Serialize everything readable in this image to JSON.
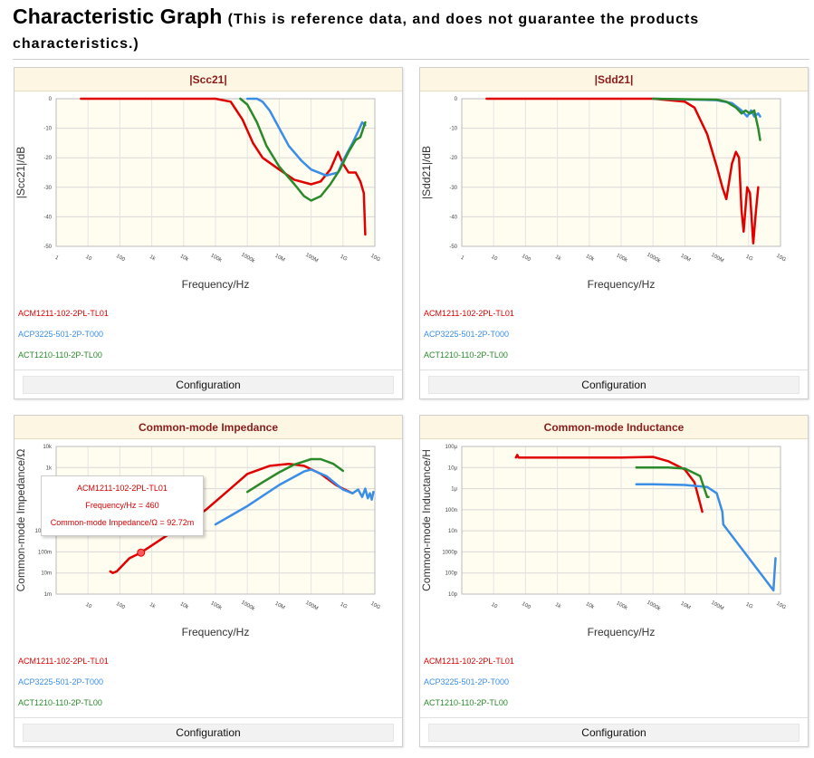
{
  "page": {
    "title": "Characteristic Graph",
    "subtitle": "(This is reference data, and does not guarantee the products characteristics.)"
  },
  "colors": {
    "red": "#e00000",
    "blue": "#3a8ee6",
    "green": "#2a8a2a",
    "head_bg": "#fdf6e3",
    "head_text": "#8b1c1c"
  },
  "legend": [
    "ACM1211-102-2PL-TL01",
    "ACP3225-501-2P-T000",
    "ACT1210-110-2P-TL00"
  ],
  "config_label": "Configuration",
  "tooltip": {
    "line1": "ACM1211-102-2PL-TL01",
    "line2": "Frequency/Hz = 460",
    "line3": "Common-mode Impedance/Ω = 92.72m"
  },
  "chart_data": [
    {
      "type": "line",
      "title": "|Scc21|",
      "xlabel": "Frequency/Hz",
      "ylabel": "|Scc21|/dB",
      "x_scale": "log",
      "xlim": [
        1,
        10000000000
      ],
      "ylim": [
        -50,
        0
      ],
      "x_tick_labels": [
        "1",
        "10",
        "100",
        "1k",
        "10k",
        "100k",
        "1000k",
        "10M",
        "100M",
        "1G",
        "10G"
      ],
      "y_tick_labels": [
        "0",
        "-10",
        "-20",
        "-30",
        "-40",
        "-50"
      ],
      "y_ticks": [
        0,
        -10,
        -20,
        -30,
        -40,
        -50
      ],
      "grid": true,
      "series": [
        {
          "name": "ACM1211-102-2PL-TL01",
          "color": "#e00000",
          "points": [
            [
              6,
              0
            ],
            [
              1000,
              0
            ],
            [
              100000,
              0
            ],
            [
              300000,
              -1
            ],
            [
              700000,
              -7
            ],
            [
              1500000,
              -15
            ],
            [
              3000000,
              -20
            ],
            [
              10000000,
              -24
            ],
            [
              30000000,
              -27.5
            ],
            [
              100000000,
              -29
            ],
            [
              200000000,
              -28
            ],
            [
              400000000,
              -24
            ],
            [
              700000000,
              -18
            ],
            [
              1000000000,
              -22
            ],
            [
              1500000000,
              -25
            ],
            [
              2500000000,
              -25
            ],
            [
              3500000000,
              -28
            ],
            [
              4500000000,
              -32
            ],
            [
              5000000000,
              -46
            ]
          ]
        },
        {
          "name": "ACP3225-501-2P-T000",
          "color": "#3a8ee6",
          "points": [
            [
              1000000,
              0
            ],
            [
              2000000,
              0
            ],
            [
              3000000,
              -1
            ],
            [
              5000000,
              -4
            ],
            [
              10000000,
              -10
            ],
            [
              20000000,
              -16
            ],
            [
              50000000,
              -21
            ],
            [
              100000000,
              -24
            ],
            [
              300000000,
              -26
            ],
            [
              700000000,
              -25
            ],
            [
              1000000000,
              -21
            ],
            [
              2000000000,
              -15
            ],
            [
              3000000000,
              -11
            ],
            [
              4000000000,
              -8
            ],
            [
              5000000000,
              -9
            ]
          ]
        },
        {
          "name": "ACT1210-110-2P-TL00",
          "color": "#2a8a2a",
          "points": [
            [
              600000,
              0
            ],
            [
              1000000,
              -2
            ],
            [
              2000000,
              -8
            ],
            [
              4000000,
              -16
            ],
            [
              10000000,
              -23
            ],
            [
              30000000,
              -29
            ],
            [
              60000000,
              -33
            ],
            [
              100000000,
              -34.5
            ],
            [
              200000000,
              -33
            ],
            [
              400000000,
              -29
            ],
            [
              800000000,
              -24
            ],
            [
              1500000000,
              -18
            ],
            [
              2500000000,
              -14
            ],
            [
              3500000000,
              -13
            ],
            [
              5000000000,
              -8
            ]
          ]
        }
      ]
    },
    {
      "type": "line",
      "title": "|Sdd21|",
      "xlabel": "Frequency/Hz",
      "ylabel": "|Sdd21|/dB",
      "x_scale": "log",
      "xlim": [
        1,
        10000000000
      ],
      "ylim": [
        -50,
        0
      ],
      "x_tick_labels": [
        "1",
        "10",
        "100",
        "1k",
        "10k",
        "100k",
        "1000k",
        "10M",
        "100M",
        "1G",
        "10G"
      ],
      "y_tick_labels": [
        "0",
        "-10",
        "-20",
        "-30",
        "-40",
        "-50"
      ],
      "y_ticks": [
        0,
        -10,
        -20,
        -30,
        -40,
        -50
      ],
      "grid": true,
      "series": [
        {
          "name": "ACM1211-102-2PL-TL01",
          "color": "#e00000",
          "points": [
            [
              6,
              0
            ],
            [
              10000,
              0
            ],
            [
              1000000,
              0
            ],
            [
              10000000,
              -1
            ],
            [
              20000000,
              -3
            ],
            [
              50000000,
              -12
            ],
            [
              100000000,
              -23
            ],
            [
              150000000,
              -30
            ],
            [
              200000000,
              -34
            ],
            [
              300000000,
              -22
            ],
            [
              400000000,
              -18
            ],
            [
              500000000,
              -20
            ],
            [
              600000000,
              -38
            ],
            [
              700000000,
              -45
            ],
            [
              900000000,
              -30
            ],
            [
              1100000000,
              -32
            ],
            [
              1400000000,
              -49
            ],
            [
              1700000000,
              -38
            ],
            [
              2000000000,
              -30
            ]
          ]
        },
        {
          "name": "ACP3225-501-2P-T000",
          "color": "#3a8ee6",
          "points": [
            [
              1000000,
              0
            ],
            [
              100000000,
              -0.5
            ],
            [
              300000000,
              -1.5
            ],
            [
              600000000,
              -4
            ],
            [
              900000000,
              -6
            ],
            [
              1200000000,
              -4
            ],
            [
              1500000000,
              -6
            ],
            [
              2000000000,
              -5
            ],
            [
              2300000000,
              -6
            ]
          ]
        },
        {
          "name": "ACT1210-110-2P-TL00",
          "color": "#2a8a2a",
          "points": [
            [
              1000000,
              0
            ],
            [
              100000000,
              -0.3
            ],
            [
              200000000,
              -1
            ],
            [
              400000000,
              -3
            ],
            [
              600000000,
              -5
            ],
            [
              800000000,
              -4
            ],
            [
              1100000000,
              -5
            ],
            [
              1500000000,
              -4
            ],
            [
              2000000000,
              -10
            ],
            [
              2300000000,
              -14
            ]
          ]
        }
      ]
    },
    {
      "type": "line",
      "title": "Common-mode Impedance",
      "xlabel": "Frequency/Hz",
      "ylabel": "Common-mode Impedance/Ω",
      "x_scale": "log",
      "y_scale": "log",
      "xlim": [
        1,
        10000000000
      ],
      "ylim": [
        0.001,
        10000
      ],
      "x_tick_labels": [
        "10",
        "100",
        "1k",
        "10k",
        "100k",
        "1000k",
        "10M",
        "100M",
        "1G",
        "10G"
      ],
      "x_ticks": [
        10,
        100,
        1000,
        10000,
        100000,
        1000000,
        10000000,
        100000000,
        1000000000,
        10000000000
      ],
      "y_tick_labels": [
        "1m",
        "10m",
        "100m",
        "1000m",
        "10",
        "100",
        "1k",
        "10k"
      ],
      "y_ticks": [
        0.001,
        0.01,
        0.1,
        1,
        10,
        100,
        1000,
        10000
      ],
      "grid": true,
      "highlight": {
        "x": 460,
        "y": 0.09272
      },
      "series": [
        {
          "name": "ACM1211-102-2PL-TL01",
          "color": "#e00000",
          "points": [
            [
              50,
              0.012
            ],
            [
              60,
              0.01
            ],
            [
              80,
              0.012
            ],
            [
              200,
              0.05
            ],
            [
              460,
              0.09272
            ],
            [
              5000,
              1
            ],
            [
              50000,
              10
            ],
            [
              200000,
              60
            ],
            [
              1000000,
              500
            ],
            [
              5000000,
              1200
            ],
            [
              20000000,
              1500
            ],
            [
              60000000,
              1200
            ],
            [
              200000000,
              500
            ],
            [
              600000000,
              150
            ],
            [
              1000000000,
              100
            ],
            [
              2000000000,
              60
            ]
          ]
        },
        {
          "name": "ACP3225-501-2P-T000",
          "color": "#3a8ee6",
          "points": [
            [
              100000,
              2
            ],
            [
              1000000,
              15
            ],
            [
              10000000,
              150
            ],
            [
              60000000,
              650
            ],
            [
              100000000,
              800
            ],
            [
              300000000,
              400
            ],
            [
              1000000000,
              90
            ],
            [
              2000000000,
              60
            ],
            [
              3000000000,
              90
            ],
            [
              4000000000,
              40
            ],
            [
              5000000000,
              100
            ],
            [
              6000000000,
              35
            ],
            [
              7000000000,
              60
            ],
            [
              8000000000,
              30
            ],
            [
              9000000000,
              70
            ]
          ]
        },
        {
          "name": "ACT1210-110-2P-TL00",
          "color": "#2a8a2a",
          "points": [
            [
              1000000,
              70
            ],
            [
              3000000,
              200
            ],
            [
              10000000,
              600
            ],
            [
              30000000,
              1400
            ],
            [
              100000000,
              2500
            ],
            [
              200000000,
              2500
            ],
            [
              500000000,
              1500
            ],
            [
              1000000000,
              700
            ]
          ]
        }
      ]
    },
    {
      "type": "line",
      "title": "Common-mode Inductance",
      "xlabel": "Frequency/Hz",
      "ylabel": "Common-mode Inductance/H",
      "x_scale": "log",
      "y_scale": "log",
      "xlim": [
        1,
        10000000000
      ],
      "ylim": [
        1e-11,
        0.0001
      ],
      "x_tick_labels": [
        "10",
        "100",
        "1k",
        "10k",
        "100k",
        "1000k",
        "10M",
        "100M",
        "1G",
        "10G"
      ],
      "x_ticks": [
        10,
        100,
        1000,
        10000,
        100000,
        1000000,
        10000000,
        100000000,
        1000000000,
        10000000000
      ],
      "y_tick_labels": [
        "10p",
        "100p",
        "1000p",
        "10n",
        "100n",
        "1μ",
        "10μ",
        "100μ"
      ],
      "y_ticks": [
        1e-11,
        1e-10,
        1e-09,
        1e-08,
        1e-07,
        1e-06,
        1e-05,
        0.0001
      ],
      "grid": true,
      "series": [
        {
          "name": "ACM1211-102-2PL-TL01",
          "color": "#e00000",
          "points": [
            [
              50,
              3e-05
            ],
            [
              55,
              4e-05
            ],
            [
              60,
              3e-05
            ],
            [
              1000,
              3e-05
            ],
            [
              100000,
              3e-05
            ],
            [
              1000000,
              3.2e-05
            ],
            [
              3000000,
              2e-05
            ],
            [
              10000000,
              8e-06
            ],
            [
              20000000,
              2e-06
            ],
            [
              30000000,
              2e-07
            ],
            [
              35000000,
              8e-08
            ]
          ]
        },
        {
          "name": "ACP3225-501-2P-T000",
          "color": "#3a8ee6",
          "points": [
            [
              300000,
              1.6e-06
            ],
            [
              1000000,
              1.6e-06
            ],
            [
              10000000,
              1.5e-06
            ],
            [
              50000000,
              1.2e-06
            ],
            [
              100000000,
              6e-07
            ],
            [
              150000000,
              8e-08
            ],
            [
              160000000,
              2e-08
            ],
            [
              6000000000,
              1.5e-11
            ],
            [
              6500000000,
              1e-10
            ],
            [
              7000000000,
              5e-10
            ]
          ]
        },
        {
          "name": "ACT1210-110-2P-TL00",
          "color": "#2a8a2a",
          "points": [
            [
              300000,
              1e-05
            ],
            [
              3000000,
              1e-05
            ],
            [
              10000000,
              9e-06
            ],
            [
              30000000,
              4e-06
            ],
            [
              50000000,
              4e-07
            ],
            [
              55000000,
              4e-07
            ]
          ]
        }
      ]
    }
  ]
}
